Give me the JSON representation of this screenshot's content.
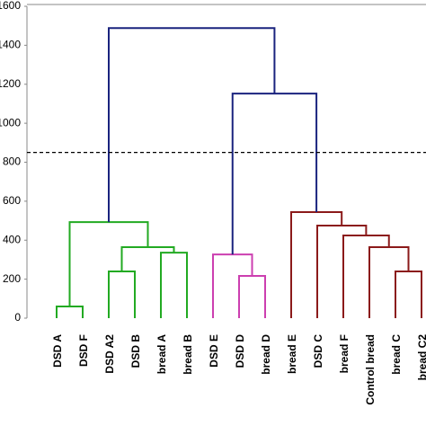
{
  "chart_data": {
    "type": "dendrogram",
    "leaves": [
      "DSD A",
      "DSD F",
      "DSD A2",
      "DSD B",
      "bread A",
      "bread B",
      "DSD E",
      "DSD D",
      "bread D",
      "bread E",
      "DSD C",
      "bread F",
      "Control bread",
      "bread C",
      "bread C2"
    ],
    "merges": [
      {
        "left": 0,
        "right": 1,
        "height": 60,
        "color": "#22aa22"
      },
      {
        "left": 2,
        "right": 3,
        "height": 240,
        "color": "#22aa22"
      },
      {
        "left": 4,
        "right": 5,
        "height": 336,
        "color": "#22aa22"
      },
      {
        "left": 16,
        "right": 17,
        "height": 364,
        "color": "#22aa22"
      },
      {
        "left": 15,
        "right": 18,
        "height": 493,
        "color": "#22aa22"
      },
      {
        "left": 7,
        "right": 8,
        "height": 217,
        "color": "#cc3fb0"
      },
      {
        "left": 6,
        "right": 20,
        "height": 327,
        "color": "#cc3fb0"
      },
      {
        "left": 13,
        "right": 14,
        "height": 240,
        "color": "#8b1a1a"
      },
      {
        "left": 12,
        "right": 22,
        "height": 364,
        "color": "#8b1a1a"
      },
      {
        "left": 11,
        "right": 23,
        "height": 424,
        "color": "#8b1a1a"
      },
      {
        "left": 10,
        "right": 24,
        "height": 475,
        "color": "#8b1a1a"
      },
      {
        "left": 9,
        "right": 25,
        "height": 544,
        "color": "#8b1a1a"
      },
      {
        "left": 21,
        "right": 26,
        "height": 1152,
        "color": "#1a237e"
      },
      {
        "left": 19,
        "right": 27,
        "height": 1488,
        "color": "#1a237e"
      }
    ],
    "cut_height": 850,
    "ylim": [
      0,
      1600
    ],
    "yticks": [
      0,
      200,
      400,
      600,
      800,
      1000,
      1200,
      1400,
      1600
    ]
  }
}
